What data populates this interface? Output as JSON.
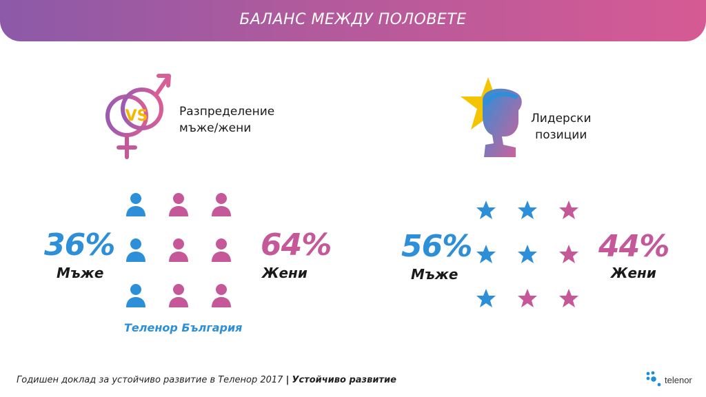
{
  "header": {
    "title": "БАЛАНС МЕЖДУ ПОЛОВЕТЕ"
  },
  "left_panel": {
    "heading_line1": "Разпределение",
    "heading_line2": "мъже/жени",
    "vs_text": "VS",
    "men_percent": "36%",
    "men_label": "Мъже",
    "women_percent": "64%",
    "women_label": "Жени",
    "company": "Теленор България",
    "icon_grid": [
      "blue",
      "pink",
      "pink",
      "blue",
      "pink",
      "pink",
      "blue",
      "pink",
      "pink"
    ]
  },
  "right_panel": {
    "heading_line1": "Лидерски",
    "heading_line2": "позиции",
    "men_percent": "56%",
    "men_label": "Мъже",
    "women_percent": "44%",
    "women_label": "Жени",
    "star_grid": [
      "blue",
      "blue",
      "pink",
      "blue",
      "blue",
      "pink",
      "blue",
      "pink",
      "pink"
    ]
  },
  "footer": {
    "report": "Годишен доклад за устойчиво развитие в Теленор 2017",
    "separator": "|",
    "section": "Устойчиво развитие"
  },
  "logo": {
    "text": "telenor"
  },
  "colors": {
    "blue": "#2d8fd8",
    "pink": "#c45898",
    "banner_start": "#8c5aa8",
    "banner_end": "#d65a94",
    "star_yellow": "#f5c400"
  }
}
